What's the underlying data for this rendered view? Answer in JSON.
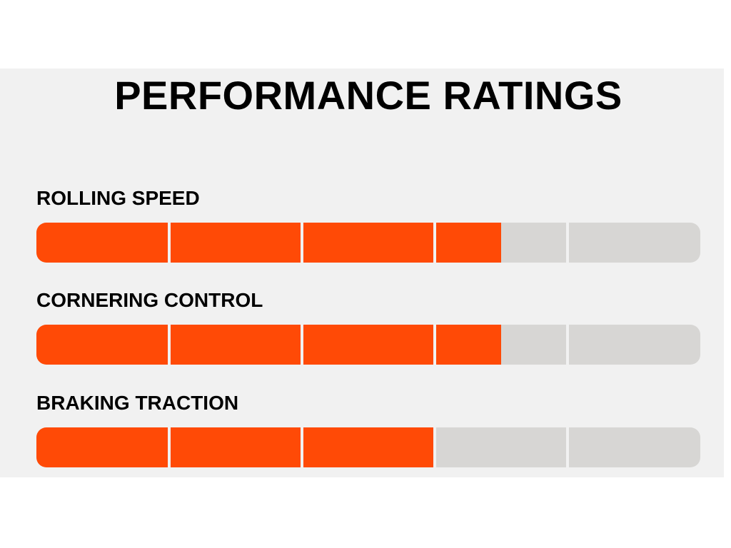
{
  "title": "PERFORMANCE RATINGS",
  "segments_per_bar": 5,
  "colors": {
    "filled": "#ff4a06",
    "empty": "#d7d6d4",
    "background": "#f1f1f1"
  },
  "ratings": [
    {
      "label": "ROLLING SPEED",
      "value": 3.5,
      "max": 5
    },
    {
      "label": "CORNERING CONTROL",
      "value": 3.5,
      "max": 5
    },
    {
      "label": "BRAKING TRACTION",
      "value": 3,
      "max": 5
    }
  ]
}
